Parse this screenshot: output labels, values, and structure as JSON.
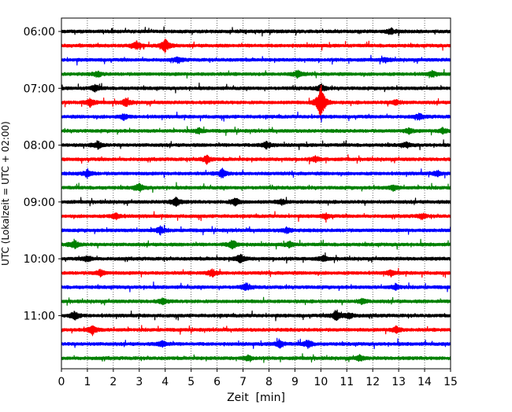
{
  "chart_data": {
    "type": "line",
    "title": "",
    "xlabel": "Zeit  [min]",
    "ylabel": "UTC (Lokalzeit = UTC + 02:00)",
    "xlim": [
      0,
      15
    ],
    "x_ticks": [
      0,
      1,
      2,
      3,
      4,
      5,
      6,
      7,
      8,
      9,
      10,
      11,
      12,
      13,
      14,
      15
    ],
    "x_tick_labels": [
      "0",
      "1",
      "2",
      "3",
      "4",
      "5",
      "6",
      "7",
      "8",
      "9",
      "10",
      "11",
      "12",
      "13",
      "14",
      "15"
    ],
    "y_tick_labels": [
      "06:00",
      "07:00",
      "08:00",
      "09:00",
      "10:00",
      "11:00"
    ],
    "row_interval_min": 15,
    "start_time": "06:00",
    "grid": "vertical-dotted",
    "legend": "none",
    "series_colors": [
      "#000000",
      "#ff0000",
      "#0000ff",
      "#008000"
    ],
    "series": [
      {
        "row": 0,
        "hour_label": "06:00",
        "color": "#000000",
        "events": [
          {
            "t": 12.7,
            "amp": 0.25
          }
        ]
      },
      {
        "row": 1,
        "hour_label": "",
        "color": "#ff0000",
        "events": [
          {
            "t": 2.9,
            "amp": 0.3
          },
          {
            "t": 4.0,
            "amp": 0.5
          }
        ]
      },
      {
        "row": 2,
        "hour_label": "",
        "color": "#0000ff",
        "events": [
          {
            "t": 4.5,
            "amp": 0.2
          },
          {
            "t": 12.5,
            "amp": 0.15
          }
        ]
      },
      {
        "row": 3,
        "hour_label": "",
        "color": "#008000",
        "events": [
          {
            "t": 1.4,
            "amp": 0.2
          },
          {
            "t": 9.1,
            "amp": 0.3
          },
          {
            "t": 14.3,
            "amp": 0.2
          }
        ]
      },
      {
        "row": 4,
        "hour_label": "07:00",
        "color": "#000000",
        "events": [
          {
            "t": 1.3,
            "amp": 0.25
          },
          {
            "t": 10.0,
            "amp": 0.3
          }
        ]
      },
      {
        "row": 5,
        "hour_label": "",
        "color": "#ff0000",
        "events": [
          {
            "t": 1.1,
            "amp": 0.3
          },
          {
            "t": 2.5,
            "amp": 0.3
          },
          {
            "t": 10.0,
            "amp": 1.4
          },
          {
            "t": 12.9,
            "amp": 0.2
          }
        ]
      },
      {
        "row": 6,
        "hour_label": "",
        "color": "#0000ff",
        "events": [
          {
            "t": 2.4,
            "amp": 0.2
          },
          {
            "t": 13.8,
            "amp": 0.2
          }
        ]
      },
      {
        "row": 7,
        "hour_label": "",
        "color": "#008000",
        "events": [
          {
            "t": 5.3,
            "amp": 0.2
          },
          {
            "t": 13.4,
            "amp": 0.2
          },
          {
            "t": 14.7,
            "amp": 0.2
          }
        ]
      },
      {
        "row": 8,
        "hour_label": "08:00",
        "color": "#000000",
        "events": [
          {
            "t": 1.4,
            "amp": 0.3
          },
          {
            "t": 7.9,
            "amp": 0.3
          },
          {
            "t": 13.3,
            "amp": 0.2
          }
        ]
      },
      {
        "row": 9,
        "hour_label": "",
        "color": "#ff0000",
        "events": [
          {
            "t": 5.6,
            "amp": 0.3
          },
          {
            "t": 9.8,
            "amp": 0.2
          }
        ]
      },
      {
        "row": 10,
        "hour_label": "",
        "color": "#0000ff",
        "events": [
          {
            "t": 1.0,
            "amp": 0.3
          },
          {
            "t": 6.2,
            "amp": 0.35
          },
          {
            "t": 14.5,
            "amp": 0.2
          }
        ]
      },
      {
        "row": 11,
        "hour_label": "",
        "color": "#008000",
        "events": [
          {
            "t": 3.0,
            "amp": 0.3
          },
          {
            "t": 12.8,
            "amp": 0.2
          }
        ]
      },
      {
        "row": 12,
        "hour_label": "09:00",
        "color": "#000000",
        "events": [
          {
            "t": 4.4,
            "amp": 0.35
          },
          {
            "t": 6.7,
            "amp": 0.3
          },
          {
            "t": 8.5,
            "amp": 0.2
          }
        ]
      },
      {
        "row": 13,
        "hour_label": "",
        "color": "#ff0000",
        "events": [
          {
            "t": 2.1,
            "amp": 0.25
          },
          {
            "t": 10.2,
            "amp": 0.2
          },
          {
            "t": 13.9,
            "amp": 0.2
          }
        ]
      },
      {
        "row": 14,
        "hour_label": "",
        "color": "#0000ff",
        "events": [
          {
            "t": 3.8,
            "amp": 0.3
          },
          {
            "t": 8.7,
            "amp": 0.2
          }
        ]
      },
      {
        "row": 15,
        "hour_label": "",
        "color": "#008000",
        "events": [
          {
            "t": 0.5,
            "amp": 0.35
          },
          {
            "t": 6.6,
            "amp": 0.35
          },
          {
            "t": 8.8,
            "amp": 0.2
          }
        ]
      },
      {
        "row": 16,
        "hour_label": "10:00",
        "color": "#000000",
        "events": [
          {
            "t": 1.0,
            "amp": 0.25
          },
          {
            "t": 6.9,
            "amp": 0.35
          },
          {
            "t": 10.1,
            "amp": 0.2
          }
        ]
      },
      {
        "row": 17,
        "hour_label": "",
        "color": "#ff0000",
        "events": [
          {
            "t": 1.5,
            "amp": 0.25
          },
          {
            "t": 5.8,
            "amp": 0.3
          },
          {
            "t": 12.7,
            "amp": 0.2
          }
        ]
      },
      {
        "row": 18,
        "hour_label": "",
        "color": "#0000ff",
        "events": [
          {
            "t": 7.1,
            "amp": 0.25
          },
          {
            "t": 12.9,
            "amp": 0.2
          }
        ]
      },
      {
        "row": 19,
        "hour_label": "",
        "color": "#008000",
        "events": [
          {
            "t": 3.9,
            "amp": 0.2
          },
          {
            "t": 11.6,
            "amp": 0.2
          }
        ]
      },
      {
        "row": 20,
        "hour_label": "11:00",
        "color": "#000000",
        "events": [
          {
            "t": 0.5,
            "amp": 0.35
          },
          {
            "t": 10.6,
            "amp": 0.45
          },
          {
            "t": 11.1,
            "amp": 0.25
          }
        ]
      },
      {
        "row": 21,
        "hour_label": "",
        "color": "#ff0000",
        "events": [
          {
            "t": 1.2,
            "amp": 0.35
          },
          {
            "t": 12.9,
            "amp": 0.25
          }
        ]
      },
      {
        "row": 22,
        "hour_label": "",
        "color": "#0000ff",
        "events": [
          {
            "t": 3.9,
            "amp": 0.25
          },
          {
            "t": 8.4,
            "amp": 0.3
          },
          {
            "t": 9.5,
            "amp": 0.3
          }
        ]
      },
      {
        "row": 23,
        "hour_label": "",
        "color": "#008000",
        "events": [
          {
            "t": 7.2,
            "amp": 0.2
          },
          {
            "t": 11.5,
            "amp": 0.2
          }
        ]
      }
    ]
  }
}
